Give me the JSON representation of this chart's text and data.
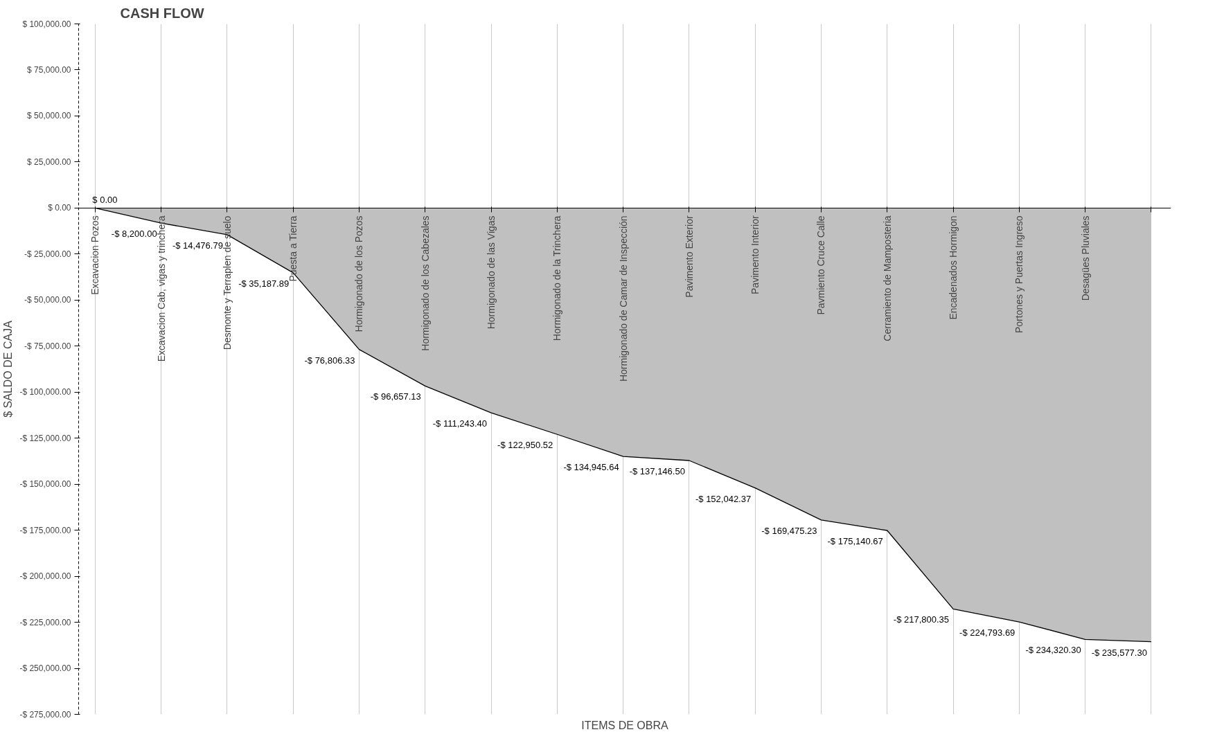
{
  "chart_data": {
    "type": "area",
    "title": "CASH FLOW",
    "xlabel": "ITEMS DE OBRA",
    "ylabel": "$ SALDO DE CAJA",
    "categories": [
      "Excavacion Pozos",
      "Excavacion Cab, vigas y trinchera",
      "Desmonte y Terraplen de suelo",
      "Puesta a Tierra",
      "Hormigonado de los Pozos",
      "Hormigonado de los Cabezales",
      "Hormigonado de las Vigas",
      "Hormigonado de la Trinchera",
      "Hormigonado de Camar de Inspección",
      "Pavimento Exterior",
      "Pavimento Interior",
      "Pavmiento Cruce Calle",
      "Cerramiento de Mamposteria",
      "Encadenados Hormigon",
      "Portones y Puertas Ingreso",
      "Desagües Pluviales",
      null
    ],
    "values": [
      0,
      -8200,
      -14476.79,
      -35187.89,
      -76806.33,
      -96657.13,
      -111243.4,
      -122950.52,
      -134945.64,
      -137146.5,
      -152042.37,
      -169475.23,
      -175140.67,
      -217800.35,
      -224793.69,
      -234320.3,
      -235577.3
    ],
    "value_labels": [
      "$ 0.00",
      "-$ 8,200.00",
      "-$ 14,476.79",
      "-$ 35,187.89",
      "-$ 76,806.33",
      "-$ 96,657.13",
      "-$ 111,243.40",
      "-$ 122,950.52",
      "-$ 134,945.64",
      "-$ 137,146.50",
      "-$ 152,042.37",
      "-$ 169,475.23",
      "-$ 175,140.67",
      "-$ 217,800.35",
      "-$ 224,793.69",
      "-$ 234,320.30",
      "-$ 235,577.30"
    ],
    "color": "#c0c0c0",
    "ylim": [
      -275000,
      100000
    ],
    "yticks": [
      {
        "value": 100000,
        "label": "$ 100,000.00"
      },
      {
        "value": 75000,
        "label": "$ 75,000.00"
      },
      {
        "value": 50000,
        "label": "$ 50,000.00"
      },
      {
        "value": 25000,
        "label": "$ 25,000.00"
      },
      {
        "value": 0,
        "label": "$ 0.00"
      },
      {
        "value": -25000,
        "label": "-$ 25,000.00"
      },
      {
        "value": -50000,
        "label": "-$ 50,000.00"
      },
      {
        "value": -75000,
        "label": "-$ 75,000.00"
      },
      {
        "value": -100000,
        "label": "-$ 100,000.00"
      },
      {
        "value": -125000,
        "label": "-$ 125,000.00"
      },
      {
        "value": -150000,
        "label": "-$ 150,000.00"
      },
      {
        "value": -175000,
        "label": "-$ 175,000.00"
      },
      {
        "value": -200000,
        "label": "-$ 200,000.00"
      },
      {
        "value": -225000,
        "label": "-$ 225,000.00"
      },
      {
        "value": -250000,
        "label": "-$ 250,000.00"
      },
      {
        "value": -275000,
        "label": "-$ 275,000.00"
      }
    ],
    "grid": "x"
  }
}
